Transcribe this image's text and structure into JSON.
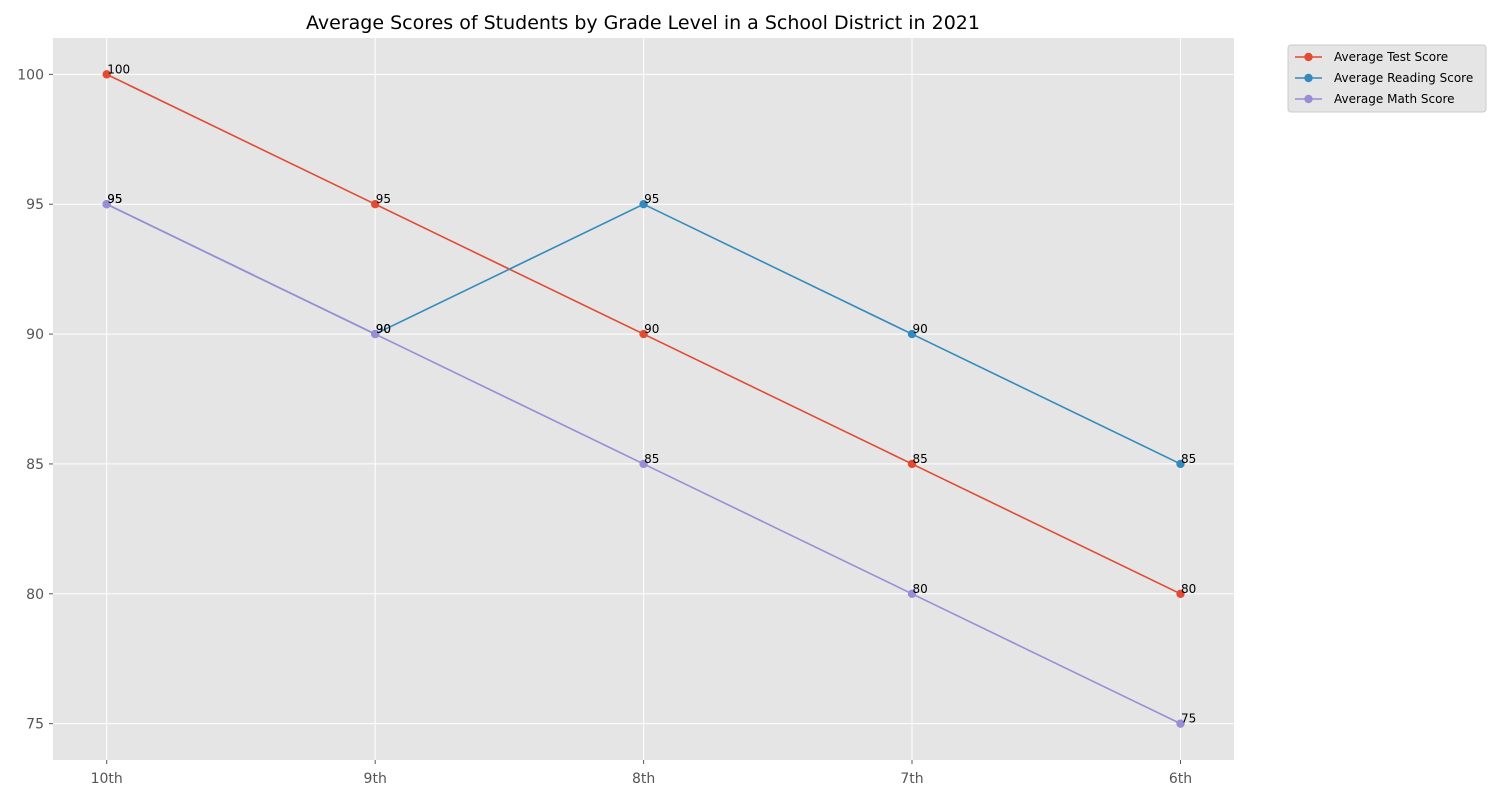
{
  "chart_data": {
    "type": "line",
    "title": "Average Scores of Students by Grade Level in a School District in 2021",
    "xlabel": "",
    "ylabel": "",
    "categories": [
      "10th",
      "9th",
      "8th",
      "7th",
      "6th"
    ],
    "ylim": [
      73.6,
      101.4
    ],
    "yticks": [
      75,
      80,
      85,
      90,
      95,
      100
    ],
    "grid": true,
    "legend_position": "outside-top-right",
    "series": [
      {
        "name": "Average Test Score",
        "color": "#E24A33",
        "values": [
          100,
          95,
          90,
          85,
          80
        ],
        "labels": [
          "100",
          "95",
          "90",
          "85",
          "80"
        ]
      },
      {
        "name": "Average Reading Score",
        "color": "#348ABD",
        "values": [
          95,
          90,
          95,
          90,
          85
        ],
        "labels": [
          "95",
          "90",
          "95",
          "90",
          "85"
        ]
      },
      {
        "name": "Average Math Score",
        "color": "#988ED5",
        "values": [
          95,
          90,
          85,
          80,
          75
        ],
        "labels": [
          "95",
          "90",
          "85",
          "80",
          "75"
        ]
      }
    ],
    "colors": {
      "plot_background": "#E5E5E5",
      "grid": "#FFFFFF",
      "legend_background": "#E5E5E5",
      "legend_border": "#CCCCCC"
    }
  }
}
